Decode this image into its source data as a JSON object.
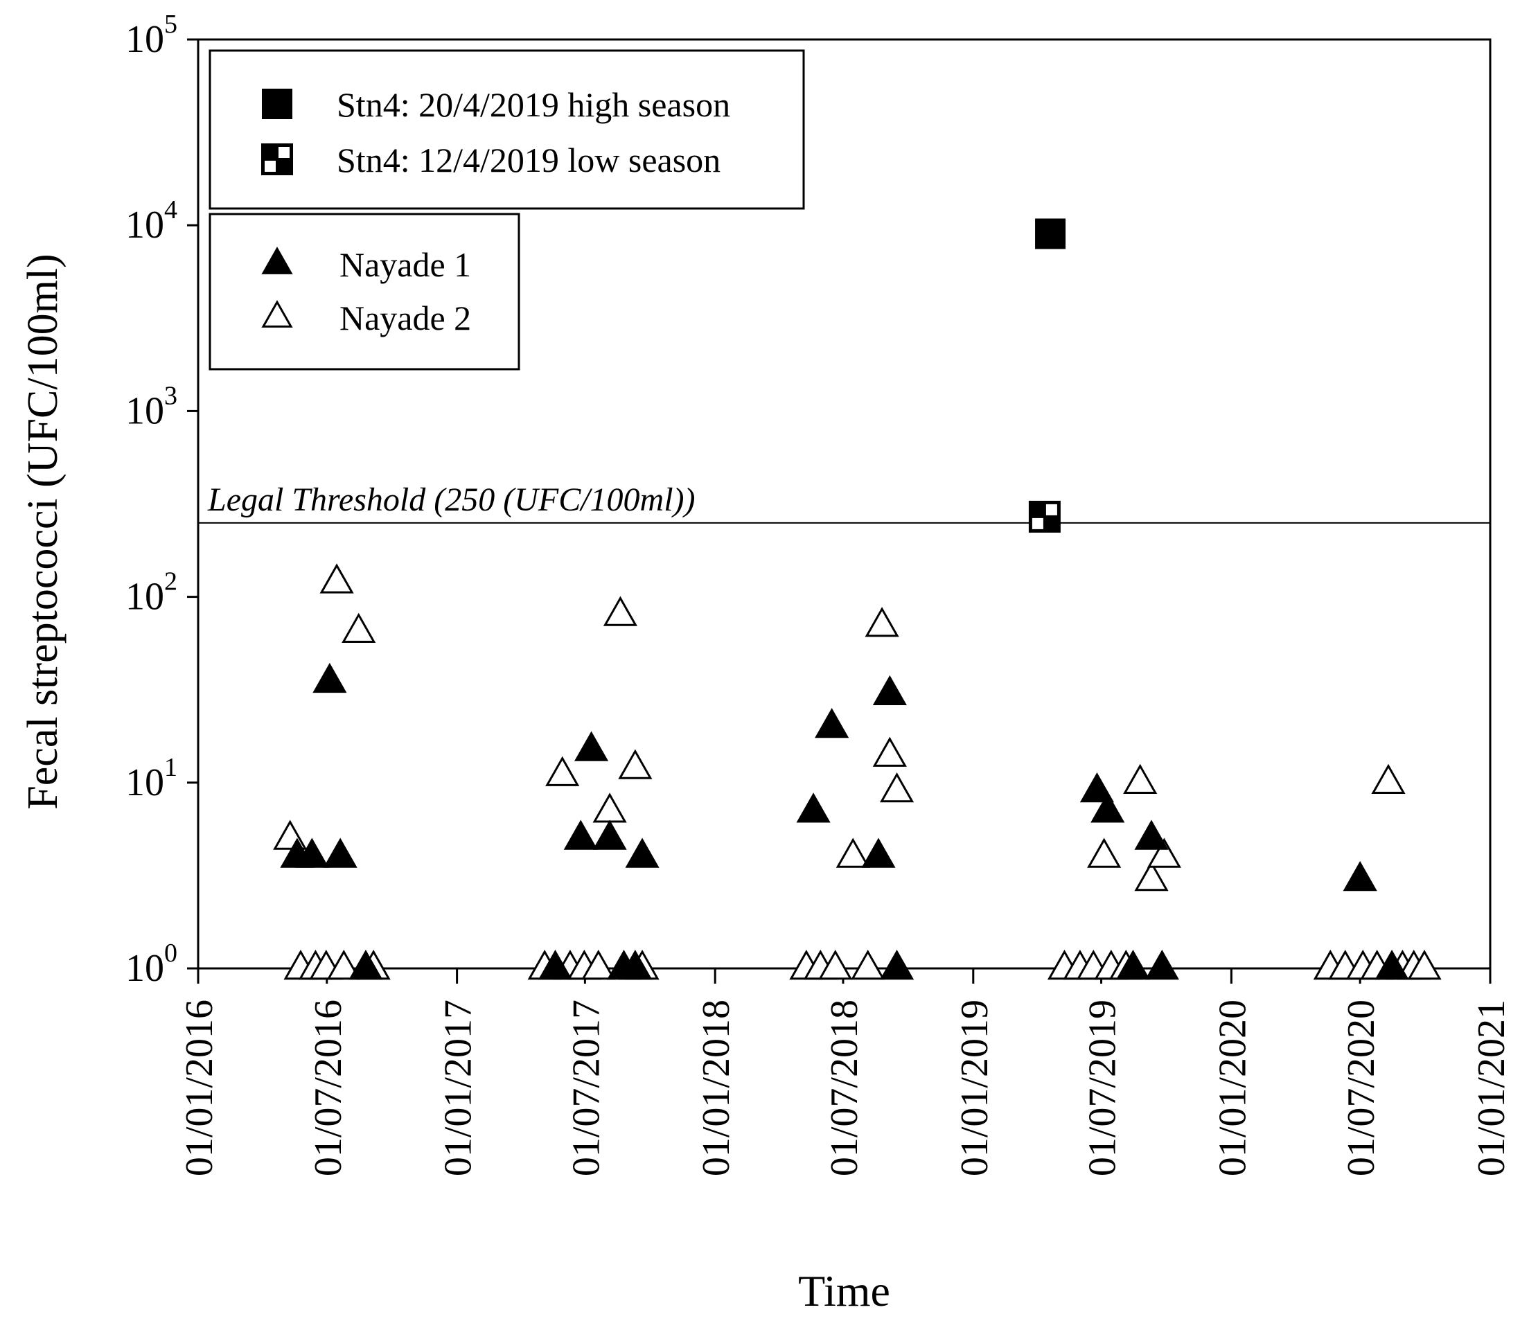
{
  "chart_data": {
    "type": "scatter",
    "xlabel": "Time",
    "ylabel": "Fecal streptococci (UFC/100ml)",
    "x_scale": "time",
    "y_scale": "log",
    "xlim": [
      "2016-01-01",
      "2021-01-01"
    ],
    "ylim": [
      1,
      100000
    ],
    "x_ticks": [
      "01/01/2016",
      "01/07/2016",
      "01/01/2017",
      "01/07/2017",
      "01/01/2018",
      "01/07/2018",
      "01/01/2019",
      "01/07/2019",
      "01/01/2020",
      "01/07/2020",
      "01/01/2021"
    ],
    "y_ticks": [
      {
        "value": 1,
        "base": "10",
        "exp": "0"
      },
      {
        "value": 10,
        "base": "10",
        "exp": "1"
      },
      {
        "value": 100,
        "base": "10",
        "exp": "2"
      },
      {
        "value": 1000,
        "base": "10",
        "exp": "3"
      },
      {
        "value": 10000,
        "base": "10",
        "exp": "4"
      },
      {
        "value": 100000,
        "base": "10",
        "exp": "5"
      }
    ],
    "threshold": {
      "value": 250,
      "label": "Legal Threshold (250 (UFC/100ml))"
    },
    "legend_location": "top-left",
    "series": [
      {
        "name": "Stn4: 20/4/2019 high season",
        "marker": "filled-square",
        "color": "#000000",
        "points": [
          {
            "x": "2019-04-20",
            "y": 9000
          }
        ]
      },
      {
        "name": "Stn4: 12/4/2019 low season",
        "marker": "checkered-square",
        "color": "#000000",
        "points": [
          {
            "x": "2019-04-12",
            "y": 270
          }
        ]
      },
      {
        "name": "Nayade 1",
        "marker": "filled-triangle",
        "color": "#000000",
        "points": [
          {
            "x": "2016-05-20",
            "y": 4
          },
          {
            "x": "2016-06-10",
            "y": 4
          },
          {
            "x": "2016-07-20",
            "y": 4
          },
          {
            "x": "2016-07-05",
            "y": 35
          },
          {
            "x": "2016-08-25",
            "y": 1
          },
          {
            "x": "2017-05-20",
            "y": 1
          },
          {
            "x": "2017-06-25",
            "y": 5
          },
          {
            "x": "2017-07-10",
            "y": 15
          },
          {
            "x": "2017-08-05",
            "y": 5
          },
          {
            "x": "2017-08-25",
            "y": 1
          },
          {
            "x": "2017-09-10",
            "y": 1
          },
          {
            "x": "2017-09-20",
            "y": 4
          },
          {
            "x": "2018-05-20",
            "y": 7
          },
          {
            "x": "2018-06-15",
            "y": 20
          },
          {
            "x": "2018-08-20",
            "y": 4
          },
          {
            "x": "2018-09-05",
            "y": 30
          },
          {
            "x": "2018-09-15",
            "y": 1
          },
          {
            "x": "2019-06-25",
            "y": 9
          },
          {
            "x": "2019-07-10",
            "y": 7
          },
          {
            "x": "2019-08-15",
            "y": 1
          },
          {
            "x": "2019-09-10",
            "y": 5
          },
          {
            "x": "2019-09-25",
            "y": 1
          },
          {
            "x": "2020-07-01",
            "y": 3
          },
          {
            "x": "2020-08-15",
            "y": 1
          }
        ]
      },
      {
        "name": "Nayade 2",
        "marker": "open-triangle",
        "color": "#000000",
        "points": [
          {
            "x": "2016-05-10",
            "y": 5
          },
          {
            "x": "2016-05-25",
            "y": 1
          },
          {
            "x": "2016-06-15",
            "y": 1
          },
          {
            "x": "2016-06-30",
            "y": 1
          },
          {
            "x": "2016-07-15",
            "y": 120
          },
          {
            "x": "2016-07-25",
            "y": 1
          },
          {
            "x": "2016-08-15",
            "y": 65
          },
          {
            "x": "2016-09-05",
            "y": 1
          },
          {
            "x": "2017-05-05",
            "y": 1
          },
          {
            "x": "2017-05-30",
            "y": 11
          },
          {
            "x": "2017-06-10",
            "y": 1
          },
          {
            "x": "2017-06-30",
            "y": 1
          },
          {
            "x": "2017-07-20",
            "y": 1
          },
          {
            "x": "2017-08-05",
            "y": 7
          },
          {
            "x": "2017-08-20",
            "y": 80
          },
          {
            "x": "2017-09-10",
            "y": 12
          },
          {
            "x": "2017-09-20",
            "y": 1
          },
          {
            "x": "2018-05-10",
            "y": 1
          },
          {
            "x": "2018-05-30",
            "y": 1
          },
          {
            "x": "2018-06-20",
            "y": 1
          },
          {
            "x": "2018-07-15",
            "y": 4
          },
          {
            "x": "2018-08-05",
            "y": 1
          },
          {
            "x": "2018-08-25",
            "y": 70
          },
          {
            "x": "2018-09-05",
            "y": 14
          },
          {
            "x": "2018-09-15",
            "y": 9
          },
          {
            "x": "2019-05-10",
            "y": 1
          },
          {
            "x": "2019-06-01",
            "y": 1
          },
          {
            "x": "2019-06-20",
            "y": 1
          },
          {
            "x": "2019-07-05",
            "y": 4
          },
          {
            "x": "2019-07-15",
            "y": 1
          },
          {
            "x": "2019-08-05",
            "y": 1
          },
          {
            "x": "2019-08-25",
            "y": 10
          },
          {
            "x": "2019-09-10",
            "y": 3
          },
          {
            "x": "2019-09-28",
            "y": 4
          },
          {
            "x": "2020-05-20",
            "y": 1
          },
          {
            "x": "2020-06-10",
            "y": 1
          },
          {
            "x": "2020-07-05",
            "y": 1
          },
          {
            "x": "2020-07-25",
            "y": 1
          },
          {
            "x": "2020-08-10",
            "y": 10
          },
          {
            "x": "2020-08-30",
            "y": 1
          },
          {
            "x": "2020-09-15",
            "y": 1
          },
          {
            "x": "2020-09-30",
            "y": 1
          }
        ]
      }
    ]
  }
}
